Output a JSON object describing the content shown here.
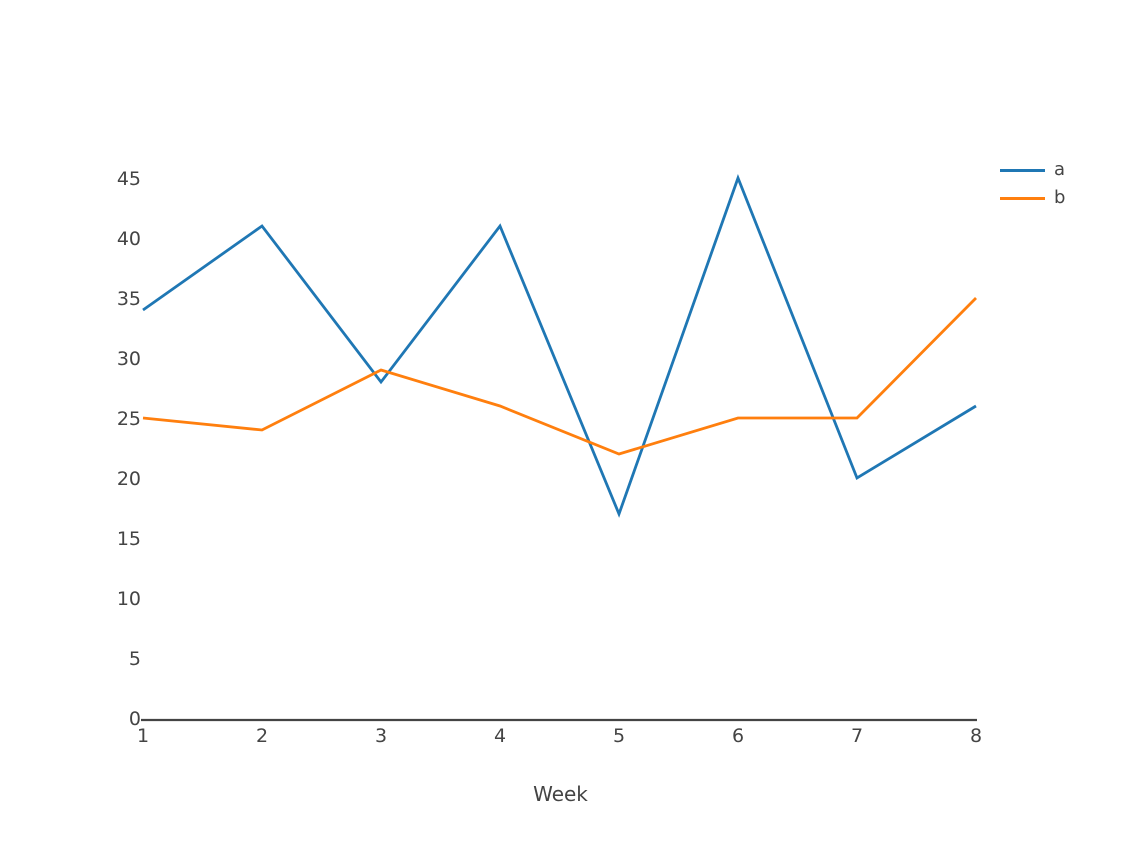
{
  "chart_data": {
    "type": "line",
    "x": [
      1,
      2,
      3,
      4,
      5,
      6,
      7,
      8
    ],
    "series": [
      {
        "name": "a",
        "color": "#1f77b4",
        "values": [
          34,
          41,
          28,
          41,
          17,
          45,
          20,
          26
        ]
      },
      {
        "name": "b",
        "color": "#ff7f0e",
        "values": [
          25,
          24,
          29,
          26,
          22,
          25,
          25,
          35
        ]
      }
    ],
    "xlabel": "Week",
    "xticks": [
      1,
      2,
      3,
      4,
      5,
      6,
      7,
      8
    ],
    "yticks": [
      0,
      5,
      10,
      15,
      20,
      25,
      30,
      35,
      40,
      45
    ],
    "ylim": [
      0,
      45
    ],
    "grid": false,
    "legend_position": "top-right",
    "axis_color": "#444444",
    "text_color": "#444444",
    "background": "#ffffff",
    "line_width": 2.8
  }
}
